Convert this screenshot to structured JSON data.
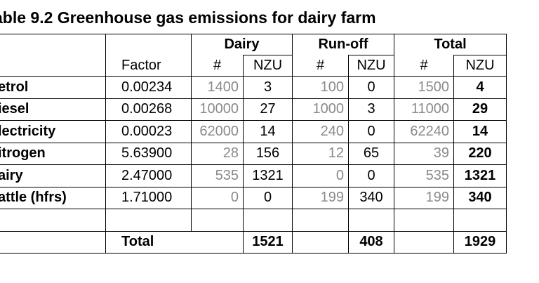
{
  "title": "able 9.2 Greenhouse gas emissions for dairy farm",
  "groups": {
    "dairy": "Dairy",
    "runoff": "Run-off",
    "total": "Total"
  },
  "subheaders": {
    "factor": "Factor",
    "hash": "#",
    "nzu": "NZU"
  },
  "rows": [
    {
      "label": "etrol",
      "factor": "0.00234",
      "dairy_count": "1400",
      "dairy_nzu": "3",
      "runoff_count": "100",
      "runoff_nzu": "0",
      "total_count": "1500",
      "total_nzu": "4"
    },
    {
      "label": "iesel",
      "factor": "0.00268",
      "dairy_count": "10000",
      "dairy_nzu": "27",
      "runoff_count": "1000",
      "runoff_nzu": "3",
      "total_count": "11000",
      "total_nzu": "29"
    },
    {
      "label": "lectricity",
      "factor": "0.00023",
      "dairy_count": "62000",
      "dairy_nzu": "14",
      "runoff_count": "240",
      "runoff_nzu": "0",
      "total_count": "62240",
      "total_nzu": "14"
    },
    {
      "label": "itrogen",
      "factor": "5.63900",
      "dairy_count": "28",
      "dairy_nzu": "156",
      "runoff_count": "12",
      "runoff_nzu": "65",
      "total_count": "39",
      "total_nzu": "220"
    },
    {
      "label": "airy",
      "factor": "2.47000",
      "dairy_count": "535",
      "dairy_nzu": "1321",
      "runoff_count": "0",
      "runoff_nzu": "0",
      "total_count": "535",
      "total_nzu": "1321"
    },
    {
      "label": "attle (hfrs)",
      "factor": "1.71000",
      "dairy_count": "0",
      "dairy_nzu": "0",
      "runoff_count": "199",
      "runoff_nzu": "340",
      "total_count": "199",
      "total_nzu": "340"
    }
  ],
  "totals": {
    "label": "Total",
    "dairy_nzu": "1521",
    "runoff_nzu": "408",
    "total_nzu": "1929"
  }
}
